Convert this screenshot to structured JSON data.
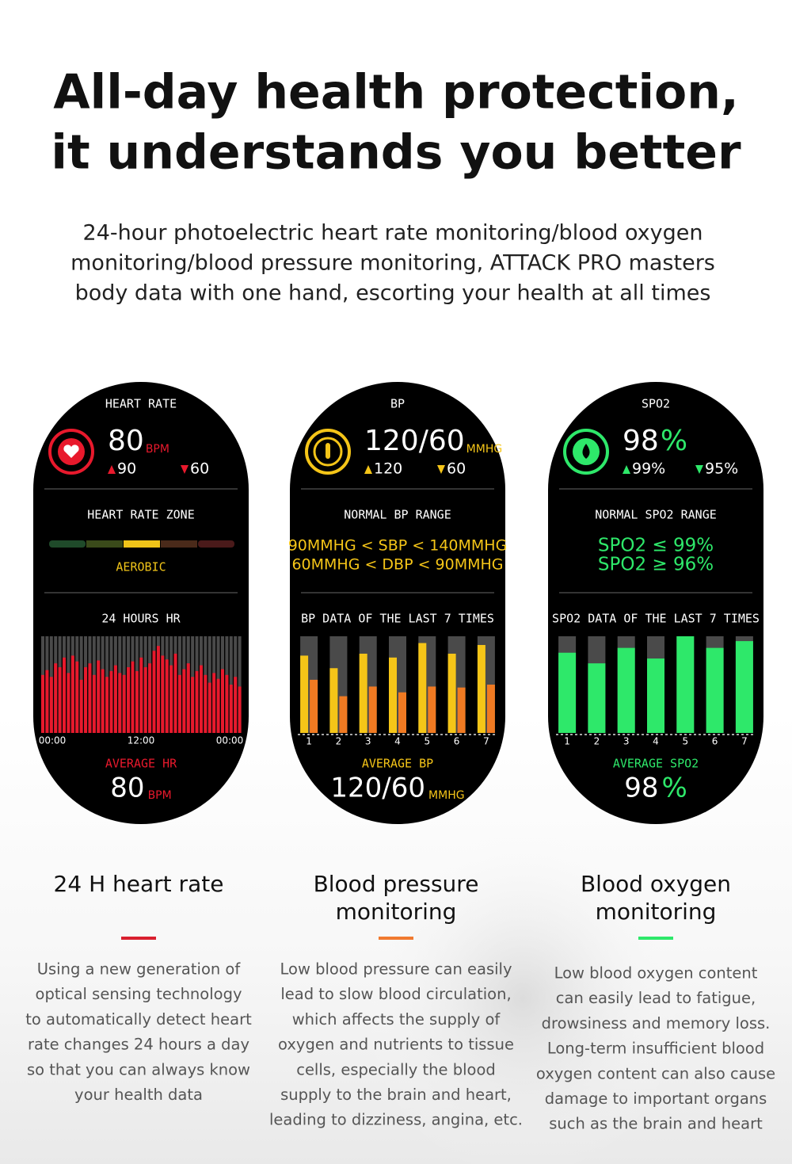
{
  "header": {
    "title": [
      "All-day health protection,",
      "it understands you better"
    ],
    "subtitle": [
      "24-hour photoelectric heart rate monitoring/blood oxygen",
      "monitoring/blood pressure monitoring, ATTACK PRO masters",
      "body data with one hand, escorting your health at all times"
    ]
  },
  "screens": [
    {
      "header": "HEART RATE",
      "accent": "#e8192c",
      "value": 80,
      "unit": "BPM",
      "high": 90,
      "low": 60,
      "range_title": "HEART RATE ZONE",
      "zone_label": "AEROBIC",
      "chart_title": "24 HOURS HR",
      "chart": {
        "type": "bar",
        "x_labels": [
          "00:00",
          "12:00",
          "00:00"
        ],
        "ylim": [
          0,
          100
        ],
        "series": [
          {
            "color": "#e8192c",
            "values": [
              60,
              65,
              58,
              72,
              68,
              78,
              62,
              80,
              74,
              55,
              68,
              72,
              60,
              75,
              66,
              58,
              64,
              70,
              62,
              60,
              68,
              74,
              64,
              78,
              68,
              72,
              85,
              90,
              80,
              76,
              70,
              82,
              60,
              66,
              72,
              58,
              64,
              70,
              60,
              52,
              62,
              56,
              66,
              60,
              50,
              58,
              48
            ]
          }
        ]
      },
      "avg_label": "AVERAGE HR",
      "avg_value": 80,
      "avg_unit": "BPM"
    },
    {
      "header": "BP",
      "accent": "#f5c518",
      "value": "120/60",
      "unit": "MMHG",
      "high": 120,
      "low": 60,
      "range_title": "NORMAL BP RANGE",
      "range_lines": [
        "90MMHG < SBP < 140MMHG",
        "60MMHG < DBP < 90MMHG"
      ],
      "chart_title": "BP DATA OF THE LAST 7 TIMES",
      "chart": {
        "type": "bar",
        "x_labels": [
          1,
          2,
          3,
          4,
          5,
          6,
          7
        ],
        "ylim": [
          0,
          100
        ],
        "series": [
          {
            "color": "#f5c518",
            "values": [
              80,
              67,
              82,
              78,
              93,
              82,
              91
            ]
          },
          {
            "color": "#f07a22",
            "values": [
              55,
              38,
              48,
              42,
              48,
              47,
              50
            ]
          }
        ]
      },
      "avg_label": "AVERAGE BP",
      "avg_value": "120/60",
      "avg_unit": "MMHG"
    },
    {
      "header": "SPO2",
      "accent": "#2ee86a",
      "value": 98,
      "unit": "%",
      "high": "99%",
      "low": "95%",
      "range_title": "NORMAL SPO2 RANGE",
      "range_lines": [
        "SPO2 ≤ 99%",
        "SPO2 ≥ 96%"
      ],
      "chart_title": "SPO2 DATA OF THE LAST 7 TIMES",
      "chart": {
        "type": "bar",
        "x_labels": [
          1,
          2,
          3,
          4,
          5,
          6,
          7
        ],
        "ylim": [
          0,
          100
        ],
        "series": [
          {
            "color": "#2ee86a",
            "values": [
              83,
              72,
              88,
              77,
              100,
              88,
              95
            ]
          }
        ]
      },
      "avg_label": "AVERAGE SPO2",
      "avg_value": 98,
      "avg_unit": "%"
    }
  ],
  "features": [
    {
      "title": [
        "24 H heart rate"
      ],
      "color": "#d9202f",
      "description": [
        "Using a new generation of",
        "optical sensing technology",
        "to automatically detect heart",
        "rate changes 24 hours a day",
        "so that you can always know",
        "your health data"
      ]
    },
    {
      "title": [
        "Blood pressure",
        "monitoring"
      ],
      "color": "#f07a30",
      "description": [
        "Low blood pressure can easily",
        "lead to slow blood circulation,",
        "which affects the supply of",
        "oxygen and nutrients to tissue",
        "cells, especially the blood",
        "supply to the brain and heart,",
        "leading to dizziness, angina, etc."
      ]
    },
    {
      "title": [
        "Blood oxygen",
        "monitoring"
      ],
      "color": "#2ee86a",
      "description": [
        "Low blood oxygen content",
        "can easily lead to fatigue,",
        "drowsiness and memory loss.",
        "Long-term insufficient blood",
        "oxygen content can also cause",
        "damage to important organs",
        "such as the brain and heart"
      ]
    }
  ]
}
